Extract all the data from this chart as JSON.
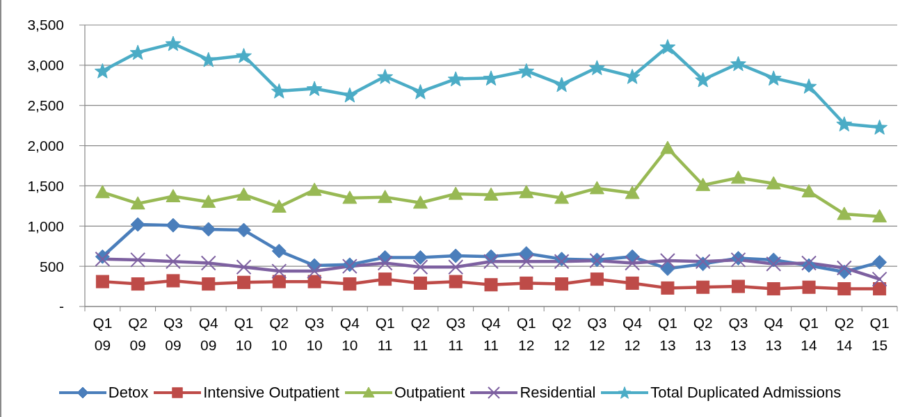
{
  "chart_data": {
    "type": "line",
    "categories": [
      "Q1 09",
      "Q2 09",
      "Q3 09",
      "Q4 09",
      "Q1 10",
      "Q2 10",
      "Q3 10",
      "Q4 10",
      "Q1 11",
      "Q2 11",
      "Q3 11",
      "Q4 11",
      "Q1 12",
      "Q2 12",
      "Q3 12",
      "Q4 12",
      "Q1 13",
      "Q2 13",
      "Q3 13",
      "Q4 13",
      "Q1 14",
      "Q2 14",
      "Q1 15"
    ],
    "series": [
      {
        "name": "Detox",
        "color": "#4a7ebb",
        "marker": "diamond",
        "values": [
          620,
          1020,
          1010,
          960,
          950,
          690,
          510,
          520,
          610,
          610,
          630,
          620,
          660,
          590,
          580,
          620,
          470,
          530,
          600,
          580,
          510,
          430,
          550
        ]
      },
      {
        "name": "Intensive Outpatient",
        "color": "#be4b48",
        "marker": "square",
        "values": [
          310,
          280,
          320,
          280,
          300,
          310,
          310,
          280,
          340,
          290,
          310,
          270,
          290,
          280,
          340,
          290,
          230,
          240,
          250,
          220,
          240,
          220,
          220
        ]
      },
      {
        "name": "Outpatient",
        "color": "#98b954",
        "marker": "triangle",
        "values": [
          1420,
          1280,
          1370,
          1300,
          1390,
          1240,
          1450,
          1350,
          1360,
          1290,
          1400,
          1390,
          1420,
          1350,
          1470,
          1410,
          1970,
          1510,
          1600,
          1530,
          1430,
          1150,
          1120
        ]
      },
      {
        "name": "Residential",
        "color": "#7d60a0",
        "marker": "cross",
        "values": [
          590,
          580,
          560,
          540,
          490,
          440,
          440,
          500,
          540,
          490,
          490,
          560,
          560,
          560,
          570,
          540,
          570,
          560,
          580,
          530,
          540,
          480,
          340
        ]
      },
      {
        "name": "Total Duplicated Admissions",
        "color": "#4bacc6",
        "marker": "star",
        "values": [
          2930,
          3160,
          3270,
          3070,
          3120,
          2680,
          2710,
          2630,
          2860,
          2670,
          2830,
          2840,
          2930,
          2760,
          2970,
          2860,
          3230,
          2820,
          3020,
          2840,
          2740,
          2270,
          2230
        ]
      }
    ],
    "ylim": [
      0,
      3500
    ],
    "yticks": [
      {
        "value": 0,
        "label": "-"
      },
      500,
      {
        "value": 1000,
        "label": "1,000"
      },
      {
        "value": 1500,
        "label": "1,500"
      },
      {
        "value": 2000,
        "label": "2,000"
      },
      {
        "value": 2500,
        "label": "2,500"
      },
      {
        "value": 3000,
        "label": "3,000"
      },
      {
        "value": 3500,
        "label": "3,500"
      }
    ],
    "grid": "y",
    "legend": "bottom",
    "line_style": "solid"
  }
}
